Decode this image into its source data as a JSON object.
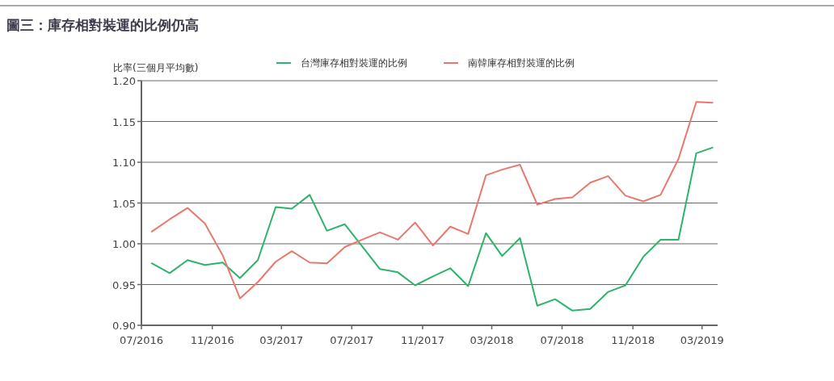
{
  "chart_data": {
    "type": "line",
    "title": "圖三：庫存相對裝運的比例仍高",
    "ylabel": "比率(三個月平均數)",
    "x": [
      "2016-07-19",
      "2016-08-19",
      "2016-09-19",
      "2016-10-19",
      "2016-11-19",
      "2016-12-19",
      "2017-01-19",
      "2017-02-19",
      "2017-03-19",
      "2017-04-19",
      "2017-05-19",
      "2017-06-19",
      "2017-07-19",
      "2017-08-19",
      "2017-09-19",
      "2017-10-19",
      "2017-11-19",
      "2017-12-19",
      "2018-01-19",
      "2018-02-19",
      "2018-03-19",
      "2018-04-19",
      "2018-05-19",
      "2018-06-19",
      "2018-07-19",
      "2018-08-19",
      "2018-09-19",
      "2018-10-19",
      "2018-11-19",
      "2018-12-19",
      "2019-01-19",
      "2019-02-19",
      "2019-03-19"
    ],
    "series": [
      {
        "name": "台灣庫存相對裝運的比例",
        "color": "#2eb36a",
        "values": [
          0.976,
          0.964,
          0.98,
          0.974,
          0.977,
          0.958,
          0.98,
          1.045,
          1.043,
          1.06,
          1.016,
          1.024,
          0.997,
          0.969,
          0.965,
          0.949,
          0.96,
          0.97,
          0.948,
          1.013,
          0.985,
          1.007,
          0.924,
          0.932,
          0.918,
          0.92,
          0.941,
          0.949,
          0.984,
          1.005,
          1.005,
          1.111,
          1.118
        ]
      },
      {
        "name": "南韓庫存相對裝運的比例",
        "color": "#e8786e",
        "values": [
          1.015,
          1.03,
          1.044,
          1.025,
          0.986,
          0.933,
          0.953,
          0.978,
          0.991,
          0.977,
          0.976,
          0.996,
          1.005,
          1.014,
          1.005,
          1.026,
          0.998,
          1.021,
          1.012,
          1.084,
          1.091,
          1.097,
          1.048,
          1.055,
          1.057,
          1.075,
          1.083,
          1.059,
          1.052,
          1.06,
          1.104,
          1.174,
          1.173
        ]
      }
    ],
    "xlim": [
      "2016-07-01",
      "2019-03-28"
    ],
    "xticks": [
      {
        "value": "2016-07-01",
        "label": "07/2016"
      },
      {
        "value": "2016-11-01",
        "label": "11/2016"
      },
      {
        "value": "2017-03-01",
        "label": "03/2017"
      },
      {
        "value": "2017-07-01",
        "label": "07/2017"
      },
      {
        "value": "2017-11-01",
        "label": "11/2017"
      },
      {
        "value": "2018-03-01",
        "label": "03/2018"
      },
      {
        "value": "2018-07-01",
        "label": "07/2018"
      },
      {
        "value": "2018-11-01",
        "label": "11/2018"
      },
      {
        "value": "2019-03-01",
        "label": "03/2019"
      }
    ],
    "ylim": [
      0.9,
      1.2
    ],
    "yticks": [
      {
        "value": 0.9,
        "label": "0.90"
      },
      0.95,
      {
        "value": 1.0,
        "label": "1.00"
      },
      1.05,
      {
        "value": 1.1,
        "label": "1.10"
      },
      1.15,
      {
        "value": 1.2,
        "label": "1.20"
      }
    ],
    "grid": "y",
    "legend": "top"
  }
}
